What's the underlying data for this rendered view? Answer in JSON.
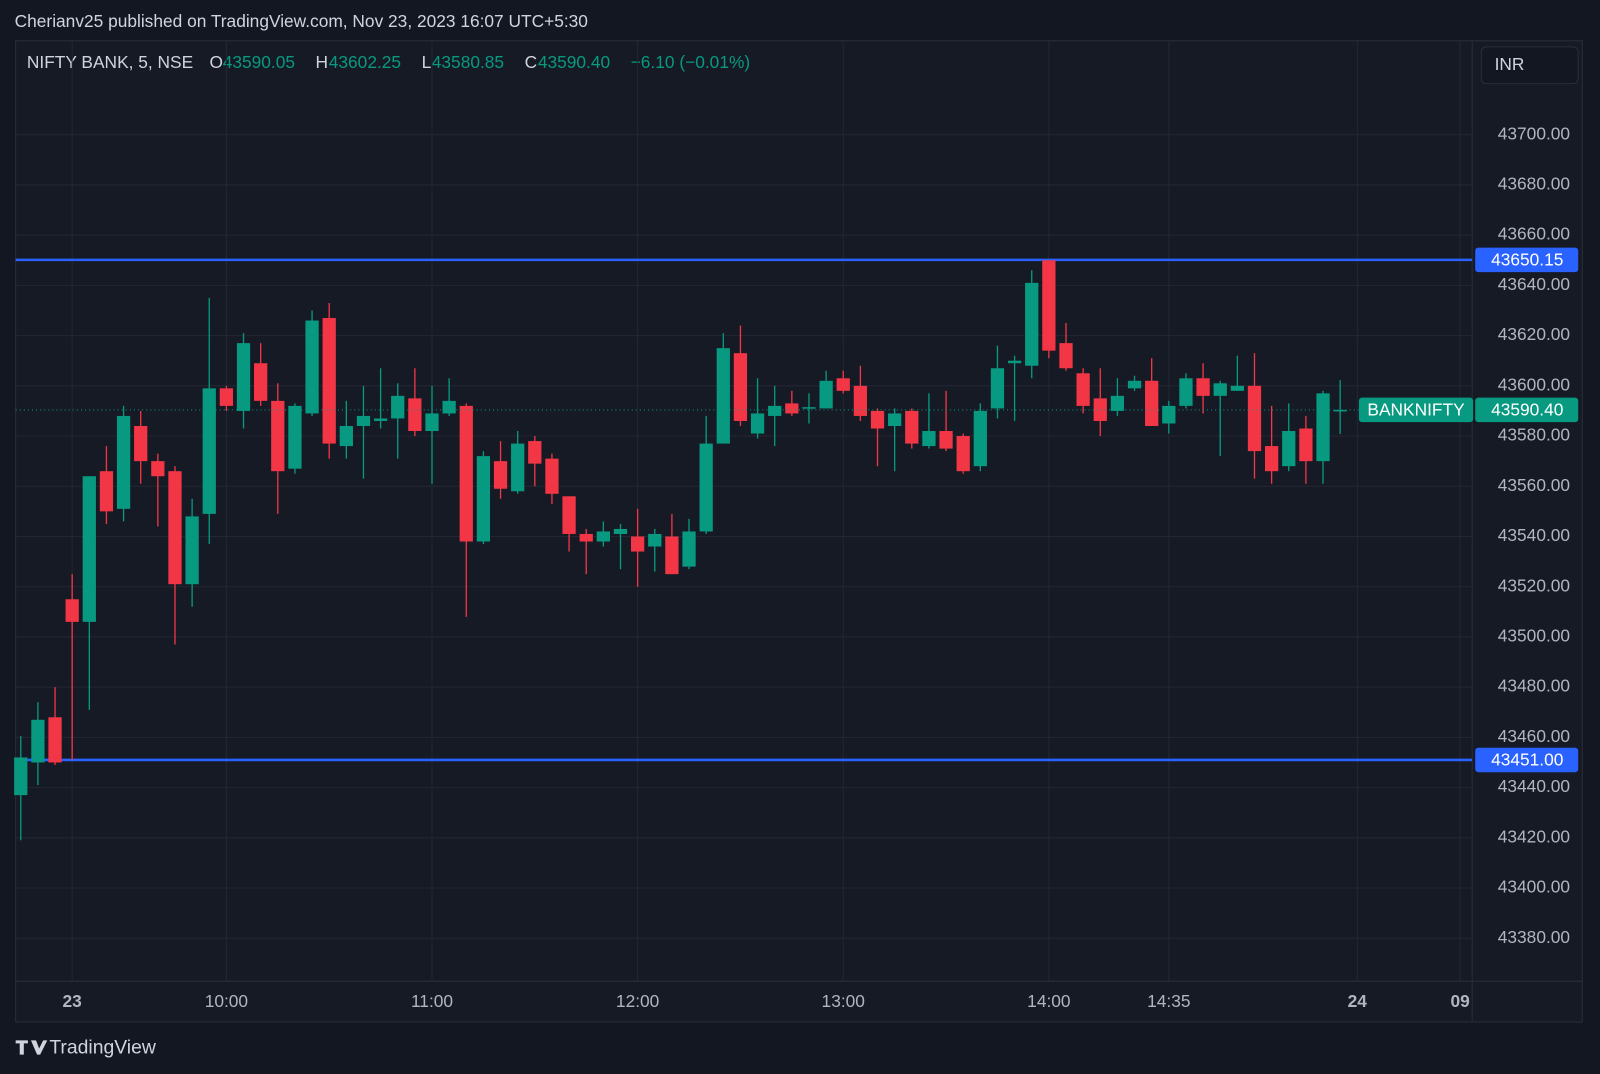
{
  "header": {
    "publisher": "Cherianv25 published on TradingView.com, Nov 23, 2023 16:07 UTC+5:30",
    "logo": "TradingView"
  },
  "chart_data": {
    "type": "candlestick",
    "symbol": "NIFTY BANK, 5, NSE",
    "ohlc_legend": [
      {
        "label": "O",
        "value": "43590.05"
      },
      {
        "label": "H",
        "value": "43602.25"
      },
      {
        "label": "L",
        "value": "43580.85"
      },
      {
        "label": "C",
        "value": "43590.40"
      }
    ],
    "change": "−6.10 (−0.01%)",
    "currency": "INR",
    "up_color": "#089981",
    "down_color": "#f23645",
    "grid": true,
    "categories": [
      null,
      null,
      null,
      "23",
      null,
      null,
      null,
      null,
      null,
      null,
      null,
      null,
      "10:00",
      null,
      null,
      null,
      null,
      null,
      null,
      null,
      null,
      null,
      null,
      null,
      "11:00",
      null,
      null,
      null,
      null,
      null,
      null,
      null,
      null,
      null,
      null,
      null,
      "12:00",
      null,
      null,
      null,
      null,
      null,
      null,
      null,
      null,
      null,
      null,
      null,
      "13:00",
      null,
      null,
      null,
      null,
      null,
      null,
      null,
      null,
      null,
      null,
      null,
      "14:00",
      null,
      null,
      null,
      null,
      null,
      null,
      "14:35",
      null,
      null,
      null,
      null,
      null,
      null,
      null,
      null,
      null,
      null,
      "24",
      null,
      null,
      null,
      null,
      null,
      "09"
    ],
    "open": [
      43437,
      43450,
      43468,
      43515,
      43506,
      43566,
      43551,
      43584,
      43570,
      43566,
      43521,
      43549,
      43599,
      43590,
      43609,
      43594,
      43567,
      43589,
      43627,
      43576,
      43584,
      43586,
      43587,
      43595,
      43582,
      43589,
      43592,
      43538,
      43570,
      43558,
      43578,
      43571,
      43556,
      43541,
      43538,
      43541,
      43540,
      43536,
      43540,
      43528,
      43542,
      43577,
      43613,
      43581,
      43588,
      43593,
      43591,
      43591,
      43603,
      43600,
      43590,
      43584,
      43590,
      43576,
      43582,
      43580,
      43568,
      43591,
      43609,
      43608,
      43650,
      43617,
      43605,
      43595,
      43590,
      43599,
      43602,
      43585,
      43592,
      43603,
      43596,
      43598,
      43600,
      43576,
      43568,
      43583,
      43570,
      43590.05,
      null,
      null,
      null,
      null,
      null,
      null,
      null
    ],
    "high": [
      43460.5,
      43474,
      43480,
      43525,
      43564,
      43576,
      43592,
      43590,
      43573,
      43568,
      43555,
      43635,
      43600,
      43621,
      43617,
      43601,
      43593,
      43630,
      43633,
      43594,
      43600,
      43607,
      43601,
      43607,
      43600,
      43603,
      43593,
      43574,
      43578,
      43582,
      43580,
      43573,
      43556,
      43543,
      43546,
      43545,
      43551,
      43543,
      43549,
      43547,
      43588,
      43621,
      43624,
      43603,
      43600,
      43598,
      43597,
      43606,
      43606,
      43608,
      43591,
      43591,
      43591,
      43597,
      43598,
      43581,
      43593,
      43616,
      43612,
      43646,
      43650.15,
      43625,
      43607,
      43607,
      43603,
      43604,
      43611,
      43594,
      43605,
      43609,
      43602,
      43612,
      43613,
      43592,
      43593,
      43588,
      43598,
      43602.25,
      null,
      null,
      null,
      null,
      null,
      null,
      null
    ],
    "low": [
      43419,
      43441,
      43449,
      43451,
      43471,
      43545,
      43546,
      43561,
      43544,
      43497,
      43512,
      43537,
      43590,
      43583,
      43592,
      43549,
      43565,
      43588,
      43571,
      43571,
      43563,
      43583,
      43571,
      43580,
      43561,
      43588,
      43508,
      43537,
      43555,
      43557,
      43560,
      43553,
      43534,
      43525,
      43536,
      43527,
      43520,
      43526,
      43525,
      43527,
      43541,
      43577,
      43584,
      43579,
      43576,
      43588,
      43585,
      43591,
      43597,
      43586,
      43568,
      43566,
      43575,
      43575,
      43574,
      43565,
      43566,
      43587,
      43586,
      43603,
      43611,
      43606,
      43589,
      43580,
      43588,
      43598,
      43584,
      43581,
      43591,
      43589,
      43572,
      43598,
      43563,
      43561,
      43566,
      43561,
      43561,
      43580.85,
      null,
      null,
      null,
      null,
      null,
      null,
      null
    ],
    "close": [
      43452,
      43467,
      43450,
      43506,
      43564,
      43550,
      43588,
      43570,
      43564,
      43521,
      43548,
      43599,
      43592,
      43617,
      43594,
      43566,
      43592,
      43626,
      43577,
      43584,
      43588,
      43587,
      43596,
      43582,
      43589,
      43594,
      43538,
      43572,
      43559,
      43577,
      43569,
      43557,
      43541,
      43538,
      43542,
      43543,
      43534,
      43541,
      43525,
      43542,
      43577,
      43615,
      43586,
      43589,
      43592,
      43589,
      43591.5,
      43602,
      43598,
      43588,
      43583,
      43589,
      43577,
      43582,
      43575,
      43566,
      43590,
      43607,
      43610,
      43641,
      43614,
      43607,
      43592,
      43586,
      43596,
      43602,
      43584,
      43592,
      43603,
      43596,
      43601,
      43600,
      43574,
      43566,
      43582,
      43570,
      43597,
      43590.4,
      null,
      null,
      null,
      null,
      null,
      null,
      null
    ],
    "ylim": [
      43362.9,
      43737.4
    ],
    "yticks": [
      {
        "value": 43380,
        "label": "43380.00"
      },
      {
        "value": 43400,
        "label": "43400.00"
      },
      {
        "value": 43420,
        "label": "43420.00"
      },
      {
        "value": 43440,
        "label": "43440.00"
      },
      {
        "value": 43460,
        "label": "43460.00"
      },
      {
        "value": 43480,
        "label": "43480.00"
      },
      {
        "value": 43500,
        "label": "43500.00"
      },
      {
        "value": 43520,
        "label": "43520.00"
      },
      {
        "value": 43540,
        "label": "43540.00"
      },
      {
        "value": 43560,
        "label": "43560.00"
      },
      {
        "value": 43580,
        "label": "43580.00"
      },
      {
        "value": 43600,
        "label": "43600.00"
      },
      {
        "value": 43620,
        "label": "43620.00"
      },
      {
        "value": 43640,
        "label": "43640.00"
      },
      {
        "value": 43660,
        "label": "43660.00"
      },
      {
        "value": 43680,
        "label": "43680.00"
      },
      {
        "value": 43700,
        "label": "43700.00"
      }
    ],
    "lines": [
      {
        "value": 43650.15,
        "label": "43650.15",
        "color": "#2962ff"
      },
      {
        "value": 43451,
        "label": "43451.00",
        "color": "#2962ff"
      }
    ],
    "last_price": {
      "name": "BANKNIFTY",
      "value": 43590.4,
      "label": "43590.40",
      "color": "#089981"
    }
  }
}
